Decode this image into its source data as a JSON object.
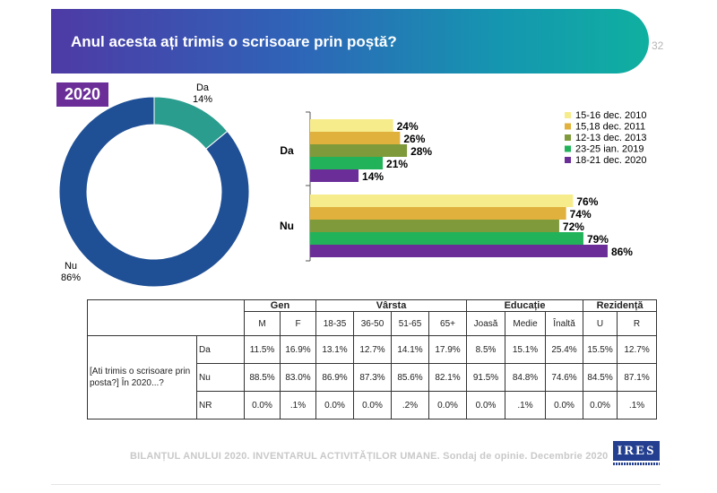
{
  "header": {
    "title": "Anul acesta ați trimis o scrisoare prin poștă?",
    "page_number": "32"
  },
  "badge": {
    "year": "2020"
  },
  "colors": {
    "accent": "#6b2e98",
    "donut_da": "#2a9d8f",
    "donut_nu": "#1f4f95"
  },
  "donut": {
    "type": "pie",
    "slices": [
      {
        "name": "Da",
        "value": 14,
        "label": "14%",
        "color": "#2a9d8f"
      },
      {
        "name": "Nu",
        "value": 86,
        "label": "86%",
        "color": "#1f4f95"
      }
    ]
  },
  "chart_data": {
    "type": "bar",
    "orientation": "horizontal",
    "categories": [
      "Da",
      "Nu"
    ],
    "legend_position": "top-right",
    "xlim": [
      0,
      100
    ],
    "series": [
      {
        "name": "15-16 dec. 2010",
        "color": "#f7ec8c",
        "values": [
          24,
          76
        ],
        "labels": [
          "24%",
          "76%"
        ]
      },
      {
        "name": "15,18 dec. 2011",
        "color": "#e0b13c",
        "values": [
          26,
          74
        ],
        "labels": [
          "26%",
          "74%"
        ]
      },
      {
        "name": "12-13 dec. 2013",
        "color": "#7e9a3a",
        "values": [
          28,
          72
        ],
        "labels": [
          "28%",
          "72%"
        ]
      },
      {
        "name": "23-25 ian. 2019",
        "color": "#22b35a",
        "values": [
          21,
          79
        ],
        "labels": [
          "21%",
          "79%"
        ]
      },
      {
        "name": "18-21 dec. 2020",
        "color": "#6b2e98",
        "values": [
          14,
          86
        ],
        "labels": [
          "14%",
          "86%"
        ]
      }
    ]
  },
  "table": {
    "question": "[Ati trimis o scrisoare prin posta?] În 2020...?",
    "groups": [
      "Gen",
      "Vârsta",
      "Educație",
      "Rezidență"
    ],
    "columns": [
      "M",
      "F",
      "18-35",
      "36-50",
      "51-65",
      "65+",
      "Joasă",
      "Medie",
      "Înaltă",
      "U",
      "R"
    ],
    "rows": [
      {
        "label": "Da",
        "values": [
          "11.5%",
          "16.9%",
          "13.1%",
          "12.7%",
          "14.1%",
          "17.9%",
          "8.5%",
          "15.1%",
          "25.4%",
          "15.5%",
          "12.7%"
        ]
      },
      {
        "label": "Nu",
        "values": [
          "88.5%",
          "83.0%",
          "86.9%",
          "87.3%",
          "85.6%",
          "82.1%",
          "91.5%",
          "84.8%",
          "74.6%",
          "84.5%",
          "87.1%"
        ]
      },
      {
        "label": "NR",
        "values": [
          "0.0%",
          ".1%",
          "0.0%",
          "0.0%",
          ".2%",
          "0.0%",
          "0.0%",
          ".1%",
          "0.0%",
          "0.0%",
          ".1%"
        ]
      }
    ]
  },
  "footer": {
    "text": "BILANȚUL ANULUI 2020. INVENTARUL ACTIVITĂȚILOR UMANE. Sondaj de opinie. Decembrie 2020"
  },
  "logo": {
    "text": "IRES"
  }
}
